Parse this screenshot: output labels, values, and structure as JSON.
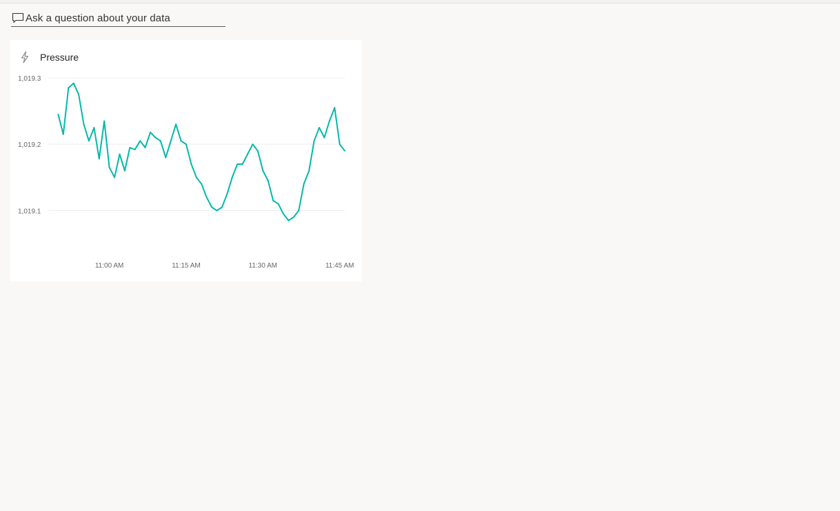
{
  "qna": {
    "placeholder": "Ask a question about your data",
    "icon": "chat-bubble-icon"
  },
  "tile": {
    "title": "Pressure",
    "icon": "lightning-bolt-icon",
    "line_color": "#01b8aa",
    "grid_color": "#ececec"
  },
  "chart_data": {
    "type": "line",
    "title": "Pressure",
    "xlabel": "",
    "ylabel": "",
    "xlim": [
      "10:49 AM",
      "11:46 AM"
    ],
    "ylim": [
      1019.04,
      1019.3
    ],
    "y_ticks": [
      "1,019.3",
      "1,019.2",
      "1,019.1"
    ],
    "y_tick_values": [
      1019.3,
      1019.2,
      1019.1
    ],
    "x_ticks": [
      "11:00 AM",
      "11:15 AM",
      "11:30 AM",
      "11:45 AM"
    ],
    "x_tick_values": [
      "11:00 AM",
      "11:15 AM",
      "11:30 AM",
      "11:45 AM"
    ],
    "grid": true,
    "legend": "none",
    "series": [
      {
        "x": [
          "10:50 AM",
          "10:51 AM",
          "10:52 AM",
          "10:53 AM",
          "10:54 AM",
          "10:55 AM",
          "10:56 AM",
          "10:57 AM",
          "10:58 AM",
          "10:59 AM",
          "11:00 AM",
          "11:01 AM",
          "11:02 AM",
          "11:03 AM",
          "11:04 AM",
          "11:05 AM",
          "11:06 AM",
          "11:07 AM",
          "11:08 AM",
          "11:09 AM",
          "11:10 AM",
          "11:11 AM",
          "11:12 AM",
          "11:13 AM",
          "11:14 AM",
          "11:15 AM",
          "11:16 AM",
          "11:17 AM",
          "11:18 AM",
          "11:19 AM",
          "11:20 AM",
          "11:21 AM",
          "11:22 AM",
          "11:23 AM",
          "11:24 AM",
          "11:25 AM",
          "11:26 AM",
          "11:27 AM",
          "11:28 AM",
          "11:29 AM",
          "11:30 AM",
          "11:31 AM",
          "11:32 AM",
          "11:33 AM",
          "11:34 AM",
          "11:35 AM",
          "11:36 AM",
          "11:37 AM",
          "11:38 AM",
          "11:39 AM",
          "11:40 AM",
          "11:41 AM",
          "11:42 AM",
          "11:43 AM",
          "11:44 AM",
          "11:45 AM",
          "11:46 AM"
        ],
        "values": [
          1019.245,
          1019.215,
          1019.285,
          1019.292,
          1019.275,
          1019.23,
          1019.205,
          1019.225,
          1019.178,
          1019.235,
          1019.165,
          1019.15,
          1019.185,
          1019.16,
          1019.195,
          1019.192,
          1019.205,
          1019.195,
          1019.218,
          1019.21,
          1019.205,
          1019.18,
          1019.205,
          1019.23,
          1019.205,
          1019.2,
          1019.17,
          1019.15,
          1019.14,
          1019.12,
          1019.105,
          1019.1,
          1019.105,
          1019.125,
          1019.15,
          1019.17,
          1019.17,
          1019.185,
          1019.2,
          1019.19,
          1019.16,
          1019.145,
          1019.115,
          1019.11,
          1019.095,
          1019.085,
          1019.09,
          1019.1,
          1019.14,
          1019.16,
          1019.205,
          1019.225,
          1019.21,
          1019.235,
          1019.255,
          1019.2,
          1019.19
        ]
      }
    ]
  }
}
